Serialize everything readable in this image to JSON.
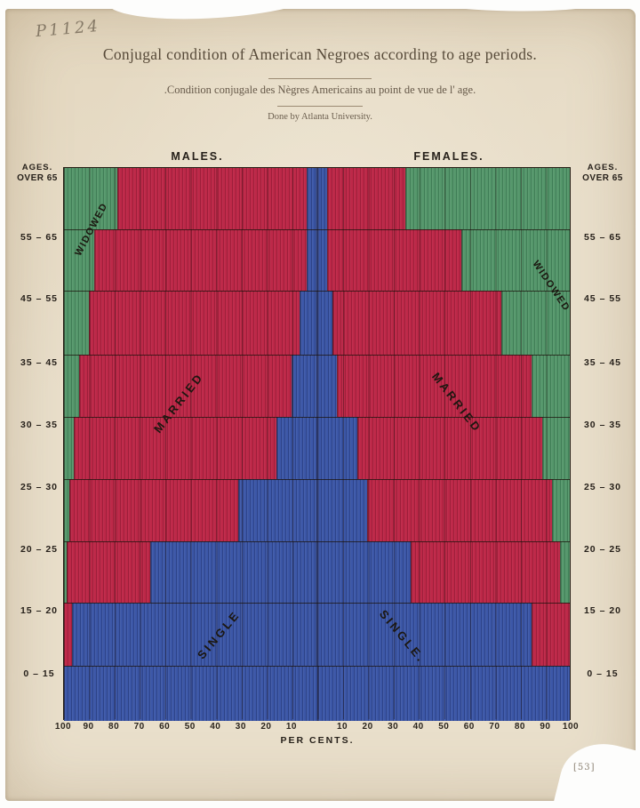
{
  "photo": {
    "pencil_top_left": "P1124",
    "pencil_bottom_right": "[53]"
  },
  "header": {
    "title": "Conjugal condition of American Negroes according to age periods.",
    "subtitle": ".Condition conjugale des Nègres Americains au point de vue de l' age.",
    "credit": "Done by Atlanta University."
  },
  "chart_data": {
    "type": "bar",
    "variant": "diverging-stacked-horizontal-pyramid",
    "title": "Conjugal condition of American Negroes according to age periods.",
    "groups": {
      "left": "MALES.",
      "right": "FEMALES."
    },
    "ages_heading": "AGES.",
    "age_labels": [
      "OVER 65",
      "55 – 65",
      "45 – 55",
      "35 – 45",
      "30 – 35",
      "25 – 30",
      "20 – 25",
      "15 – 20",
      "0 – 15"
    ],
    "categories_top_to_bottom": [
      "Over 65",
      "55-65",
      "45-55",
      "35-45",
      "30-35",
      "25-30",
      "20-25",
      "15-20",
      "0-15"
    ],
    "units": "percent",
    "xlabel": "PER CENTS.",
    "x_ticks": [
      100,
      90,
      80,
      70,
      60,
      50,
      40,
      30,
      20,
      10,
      10,
      20,
      30,
      40,
      50,
      60,
      70,
      80,
      90,
      100
    ],
    "legend_region_labels": {
      "widowed": "WIDOWED",
      "married": "MARRIED",
      "single_male": "SINGLE",
      "single_female": "SINGLE."
    },
    "males": [
      {
        "age": "Over 65",
        "single": 4,
        "married": 75,
        "widowed": 21
      },
      {
        "age": "55-65",
        "single": 4,
        "married": 84,
        "widowed": 12
      },
      {
        "age": "45-55",
        "single": 7,
        "married": 83,
        "widowed": 10
      },
      {
        "age": "35-45",
        "single": 10,
        "married": 84,
        "widowed": 6
      },
      {
        "age": "30-35",
        "single": 16,
        "married": 80,
        "widowed": 4
      },
      {
        "age": "25-30",
        "single": 31,
        "married": 67,
        "widowed": 2
      },
      {
        "age": "20-25",
        "single": 66,
        "married": 33,
        "widowed": 1
      },
      {
        "age": "15-20",
        "single": 97,
        "married": 3,
        "widowed": 0
      },
      {
        "age": "0-15",
        "single": 100,
        "married": 0,
        "widowed": 0
      }
    ],
    "females": [
      {
        "age": "Over 65",
        "single": 4,
        "married": 31,
        "widowed": 65
      },
      {
        "age": "55-65",
        "single": 4,
        "married": 53,
        "widowed": 43
      },
      {
        "age": "45-55",
        "single": 6,
        "married": 67,
        "widowed": 27
      },
      {
        "age": "35-45",
        "single": 8,
        "married": 77,
        "widowed": 15
      },
      {
        "age": "30-35",
        "single": 16,
        "married": 73,
        "widowed": 11
      },
      {
        "age": "25-30",
        "single": 20,
        "married": 73,
        "widowed": 7
      },
      {
        "age": "20-25",
        "single": 37,
        "married": 59,
        "widowed": 4
      },
      {
        "age": "15-20",
        "single": 85,
        "married": 15,
        "widowed": 0
      },
      {
        "age": "0-15",
        "single": 100,
        "married": 0,
        "widowed": 0
      }
    ],
    "colors": {
      "single": "#3c57a7",
      "married": "#bd2848",
      "widowed": "#55976b",
      "paper": "#e9dfcb",
      "ink": "#26201a"
    }
  }
}
